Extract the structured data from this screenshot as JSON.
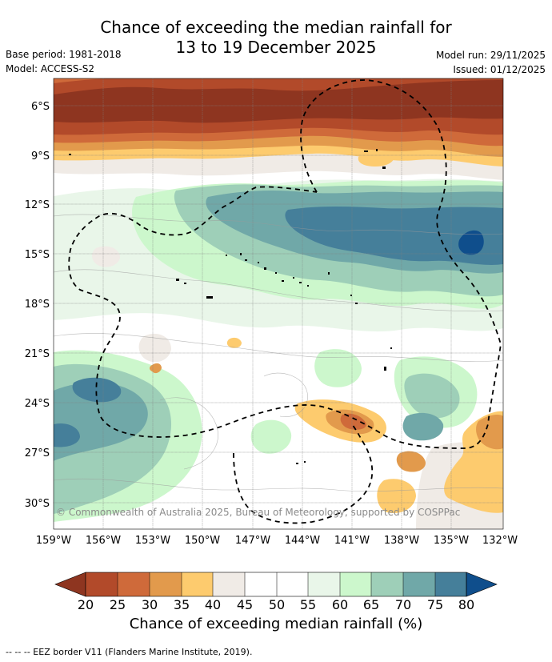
{
  "header": {
    "title_line1": "Chance of exceeding the median rainfall for",
    "title_line2": "13 to 19 December 2025",
    "base_period": "Base period: 1981-2018",
    "model": "Model: ACCESS-S2",
    "model_run": "Model run: 29/11/2025",
    "issued": "Issued: 01/12/2025"
  },
  "map": {
    "lat_labels": [
      "6°S",
      "9°S",
      "12°S",
      "15°S",
      "18°S",
      "21°S",
      "24°S",
      "27°S",
      "30°S"
    ],
    "lon_labels": [
      "159°W",
      "156°W",
      "153°W",
      "150°W",
      "147°W",
      "144°W",
      "141°W",
      "138°W",
      "135°W",
      "132°W"
    ],
    "credit": "© Commonwealth of Australia 2025, Bureau of Meteorology, supported by COSPPac",
    "colors": {
      "below_20": "#8e3520",
      "20_25": "#b24a2a",
      "25_30": "#cf6a3a",
      "30_35": "#e29a4c",
      "35_40": "#fdcb6e",
      "40_45": "#f0ebe6",
      "45_55": "#ffffff",
      "55_60": "#e9f6e9",
      "60_65": "#ccf7cc",
      "65_70": "#9ecfb8",
      "70_75": "#70a8a8",
      "75_80": "#457f9a",
      "above_80": "#0f4e8c"
    }
  },
  "colorbar": {
    "ticks": [
      "20",
      "25",
      "30",
      "35",
      "40",
      "45",
      "50",
      "55",
      "60",
      "65",
      "70",
      "75",
      "80"
    ],
    "label": "Chance of exceeding median rainfall (%)"
  },
  "footer": {
    "legend_text": "--  --  -- EEZ border V11 (Flanders Marine Institute, 2019)."
  }
}
